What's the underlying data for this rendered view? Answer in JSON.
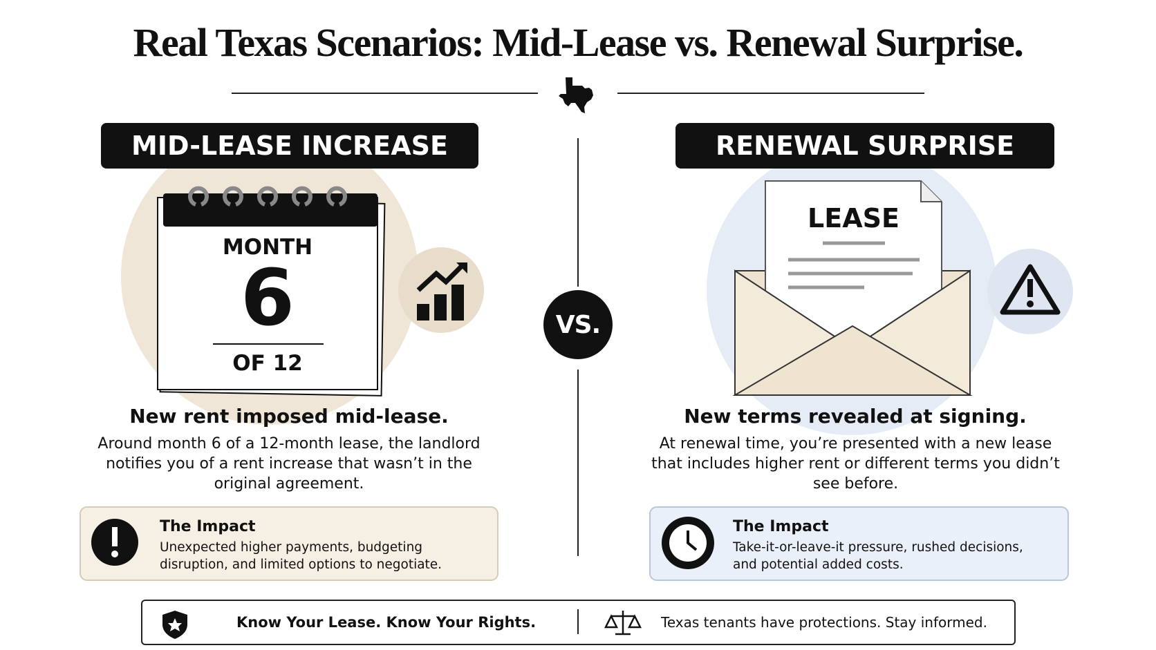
{
  "header": {
    "title": "Real Texas Scenarios: Mid-Lease vs. Renewal Surprise."
  },
  "left": {
    "heading": "MID-LEASE INCREASE",
    "calendar": {
      "top": "MONTH",
      "number": "6",
      "bottom": "OF 12"
    },
    "headline": "New rent imposed mid-lease.",
    "body": "Around month 6 of a 12-month lease, the landlord notifies you of a rent increase that wasn’t in the original agreement.",
    "impact": {
      "title": "The Impact",
      "text": "Unexpected higher payments, budgeting disruption, and limited options to negotiate."
    }
  },
  "versus": "VS.",
  "right": {
    "heading": "RENEWAL SURPRISE",
    "document": "LEASE",
    "headline": "New terms revealed at signing.",
    "body": "At renewal time, you’re presented with a new lease that includes higher rent or different terms you didn’t see before.",
    "impact": {
      "title": "The Impact",
      "text": "Take-it-or-leave-it pressure, rushed decisions, and potential added costs."
    }
  },
  "footer": {
    "left": "Know Your Lease. Know Your Rights.",
    "right": "Texas tenants have protections. Stay informed."
  }
}
